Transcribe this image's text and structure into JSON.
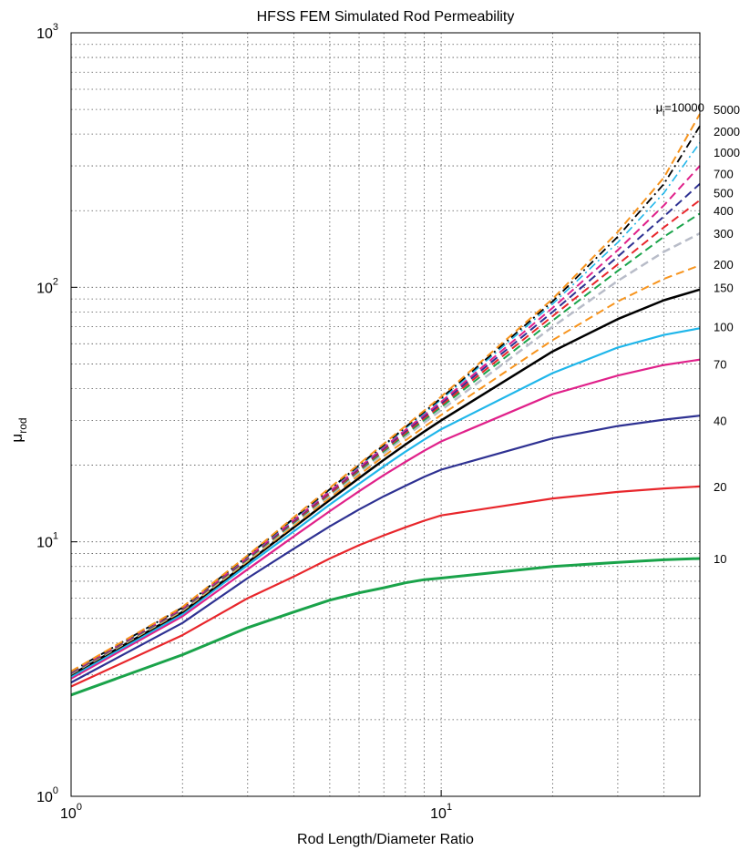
{
  "chart_data": {
    "type": "line",
    "title": "HFSS FEM Simulated Rod Permeability",
    "xlabel": "Rod Length/Diameter Ratio",
    "ylabel": {
      "base": "μ",
      "sub": "rod"
    },
    "xscale": "log",
    "yscale": "log",
    "xlim": [
      1,
      50
    ],
    "ylim": [
      1,
      1000
    ],
    "grid": true,
    "grid_style": "dotted",
    "xticks": [
      {
        "value": 1,
        "base": "10",
        "exp": "0"
      },
      {
        "value": 10,
        "base": "10",
        "exp": "1"
      }
    ],
    "yticks": [
      {
        "value": 1,
        "base": "10",
        "exp": "0"
      },
      {
        "value": 10,
        "base": "10",
        "exp": "1"
      },
      {
        "value": 100,
        "base": "10",
        "exp": "2"
      },
      {
        "value": 1000,
        "base": "10",
        "exp": "3"
      }
    ],
    "annotation": {
      "base": "μ",
      "sub": "i",
      "text": "=10000",
      "x": 38,
      "y": 490
    },
    "x": [
      1,
      2,
      3,
      4,
      5,
      6,
      7,
      8,
      9,
      10,
      20,
      30,
      40,
      50
    ],
    "series": [
      {
        "label": "10",
        "color": "#1aa34a",
        "dash": "solid",
        "width": 3,
        "label_y": 8.6,
        "values": [
          2.5,
          3.6,
          4.6,
          5.3,
          5.9,
          6.3,
          6.6,
          6.9,
          7.1,
          7.2,
          8.0,
          8.3,
          8.5,
          8.6
        ]
      },
      {
        "label": "20",
        "color": "#e8262b",
        "dash": "solid",
        "width": 2.2,
        "label_y": 16.5,
        "values": [
          2.7,
          4.3,
          6.0,
          7.3,
          8.6,
          9.7,
          10.6,
          11.4,
          12.1,
          12.7,
          14.8,
          15.7,
          16.2,
          16.5
        ]
      },
      {
        "label": "40",
        "color": "#2e3192",
        "dash": "solid",
        "width": 2.2,
        "label_y": 30,
        "values": [
          2.8,
          4.8,
          7.2,
          9.4,
          11.5,
          13.4,
          15.1,
          16.6,
          18.0,
          19.2,
          25.5,
          28.5,
          30.2,
          31.3
        ]
      },
      {
        "label": "70",
        "color": "#e0218a",
        "dash": "solid",
        "width": 2.2,
        "label_y": 50,
        "values": [
          2.9,
          5.1,
          7.8,
          10.5,
          13.2,
          15.8,
          18.3,
          20.6,
          22.8,
          24.8,
          38.0,
          45.0,
          49.5,
          52.0
        ]
      },
      {
        "label": "100",
        "color": "#1fb6ea",
        "dash": "solid",
        "width": 2.2,
        "label_y": 70,
        "values": [
          2.95,
          5.2,
          8.1,
          11.0,
          14.0,
          16.9,
          19.8,
          22.6,
          25.2,
          27.7,
          46.0,
          58.0,
          65.0,
          69.0
        ]
      },
      {
        "label": "150",
        "color": "#000000",
        "dash": "solid",
        "width": 2.5,
        "label_y": 100,
        "values": [
          3.0,
          5.3,
          8.3,
          11.4,
          14.6,
          17.8,
          21.0,
          24.1,
          27.1,
          30.0,
          56.0,
          75.0,
          89.0,
          98.0
        ]
      },
      {
        "label": "200",
        "color": "#f7941d",
        "dash": "dashed",
        "width": 2,
        "label_y": 123,
        "values": [
          3.02,
          5.35,
          8.4,
          11.6,
          14.9,
          18.3,
          21.7,
          25.0,
          28.3,
          31.5,
          62.0,
          88.0,
          108.0,
          122.0
        ]
      },
      {
        "label": "300",
        "color": "#b8bcc8",
        "dash": "dashed",
        "width": 2.5,
        "label_y": 163,
        "values": [
          3.03,
          5.4,
          8.5,
          11.8,
          15.2,
          18.7,
          22.3,
          25.9,
          29.4,
          32.9,
          70.0,
          106.0,
          138.0,
          163.0
        ]
      },
      {
        "label": "400",
        "color": "#1aa34a",
        "dash": "dashed",
        "width": 2,
        "label_y": 200,
        "values": [
          3.04,
          5.42,
          8.55,
          11.9,
          15.4,
          19.0,
          22.7,
          26.4,
          30.1,
          33.8,
          74.0,
          116.0,
          158.0,
          195.0
        ]
      },
      {
        "label": "500",
        "color": "#e8262b",
        "dash": "dashed",
        "width": 2,
        "label_y": 235,
        "values": [
          3.05,
          5.44,
          8.6,
          12.0,
          15.5,
          19.2,
          23.0,
          26.8,
          30.6,
          34.4,
          77.0,
          123.0,
          172.0,
          220.0
        ]
      },
      {
        "label": "700",
        "color": "#2e3192",
        "dash": "dashed",
        "width": 2,
        "label_y": 280,
        "values": [
          3.06,
          5.46,
          8.65,
          12.1,
          15.7,
          19.4,
          23.3,
          27.2,
          31.1,
          35.0,
          80.0,
          132.0,
          190.0,
          255.0
        ]
      },
      {
        "label": "1000",
        "color": "#e0218a",
        "dash": "dashed",
        "width": 2,
        "label_y": 340,
        "values": [
          3.07,
          5.48,
          8.7,
          12.2,
          15.8,
          19.6,
          23.5,
          27.5,
          31.5,
          35.5,
          83.0,
          140.0,
          210.0,
          300.0
        ]
      },
      {
        "label": "2000",
        "color": "#1fb6ea",
        "dash": "dashdot",
        "width": 1.6,
        "label_y": 410,
        "values": [
          3.08,
          5.5,
          8.75,
          12.3,
          16.0,
          19.8,
          23.8,
          27.9,
          32.0,
          36.2,
          86.0,
          150.0,
          235.0,
          370.0
        ]
      },
      {
        "label": "5000",
        "color": "#000000",
        "dash": "dashdot",
        "width": 1.8,
        "label_y": 500,
        "values": [
          3.09,
          5.52,
          8.8,
          12.4,
          16.1,
          20.0,
          24.0,
          28.2,
          32.4,
          36.7,
          88.0,
          158.0,
          255.0,
          430.0
        ]
      },
      {
        "label": "",
        "color": "#f7941d",
        "dash": "dashed",
        "width": 2,
        "label_y": null,
        "values": [
          3.1,
          5.55,
          8.85,
          12.5,
          16.3,
          20.2,
          24.3,
          28.5,
          32.8,
          37.2,
          90.0,
          165.0,
          270.0,
          480.0
        ]
      }
    ]
  }
}
